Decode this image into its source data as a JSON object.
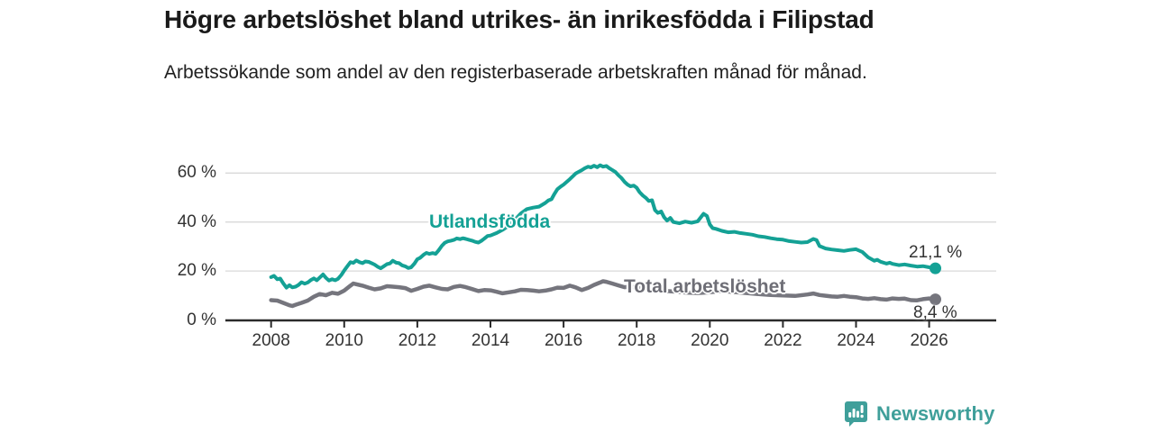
{
  "header": {
    "title": "Högre arbetslöshet bland utrikes- än inrikesfödda i Filipstad",
    "subtitle": "Arbetssökande som andel av den registerbaserade arbetskraften månad för månad."
  },
  "branding": {
    "logo_text": "Newsworthy",
    "logo_icon": "bar-chart-speech-bubble-icon",
    "brand_color": "#3f9f9a"
  },
  "colors": {
    "foreign_line": "#14a195",
    "total_line": "#75757d",
    "grid": "#d9d9d9",
    "axis": "#2b2b2b",
    "tick_text": "#333333"
  },
  "chart_data": {
    "type": "line",
    "title": "Högre arbetslöshet bland utrikes- än inrikesfödda i Filipstad",
    "subtitle": "Arbetssökande som andel av den registerbaserade arbetskraften månad för månad.",
    "xlabel": "",
    "ylabel": "",
    "ylim": [
      0,
      66
    ],
    "xlim": [
      2006.75,
      2027.8
    ],
    "grid": "horizontal",
    "legend_position": "inline-labels",
    "y_ticks": [
      0,
      20,
      40,
      60
    ],
    "y_tick_labels": [
      "0 %",
      "20 %",
      "40 %",
      "60 %"
    ],
    "x_ticks": [
      2008,
      2010,
      2012,
      2014,
      2016,
      2018,
      2020,
      2022,
      2024,
      2026
    ],
    "series": [
      {
        "name": "Utlandsfödda",
        "color": "#14a195",
        "end_value": 21.1,
        "end_label": "21,1 %",
        "points": [
          [
            2008.0,
            17.5
          ],
          [
            2008.08,
            18.0
          ],
          [
            2008.17,
            16.6
          ],
          [
            2008.25,
            16.9
          ],
          [
            2008.33,
            15.0
          ],
          [
            2008.42,
            13.2
          ],
          [
            2008.5,
            14.2
          ],
          [
            2008.58,
            13.3
          ],
          [
            2008.67,
            13.6
          ],
          [
            2008.75,
            14.3
          ],
          [
            2008.83,
            15.4
          ],
          [
            2008.92,
            14.8
          ],
          [
            2009.0,
            15.3
          ],
          [
            2009.08,
            16.2
          ],
          [
            2009.17,
            17.0
          ],
          [
            2009.25,
            16.2
          ],
          [
            2009.33,
            17.3
          ],
          [
            2009.42,
            18.6
          ],
          [
            2009.5,
            17.2
          ],
          [
            2009.58,
            16.1
          ],
          [
            2009.67,
            16.6
          ],
          [
            2009.75,
            16.2
          ],
          [
            2009.83,
            16.8
          ],
          [
            2009.92,
            18.4
          ],
          [
            2010.0,
            20.2
          ],
          [
            2010.08,
            21.8
          ],
          [
            2010.17,
            23.6
          ],
          [
            2010.25,
            23.3
          ],
          [
            2010.33,
            24.3
          ],
          [
            2010.42,
            23.6
          ],
          [
            2010.5,
            23.2
          ],
          [
            2010.58,
            23.9
          ],
          [
            2010.67,
            23.7
          ],
          [
            2010.75,
            23.2
          ],
          [
            2010.83,
            22.6
          ],
          [
            2010.92,
            21.7
          ],
          [
            2011.0,
            21.1
          ],
          [
            2011.08,
            21.9
          ],
          [
            2011.17,
            22.8
          ],
          [
            2011.25,
            23.1
          ],
          [
            2011.33,
            24.2
          ],
          [
            2011.42,
            23.4
          ],
          [
            2011.5,
            23.2
          ],
          [
            2011.58,
            22.3
          ],
          [
            2011.67,
            21.9
          ],
          [
            2011.75,
            21.2
          ],
          [
            2011.83,
            21.5
          ],
          [
            2011.92,
            23.0
          ],
          [
            2012.0,
            24.8
          ],
          [
            2012.08,
            25.4
          ],
          [
            2012.17,
            26.6
          ],
          [
            2012.25,
            27.4
          ],
          [
            2012.33,
            27.0
          ],
          [
            2012.42,
            27.3
          ],
          [
            2012.5,
            27.0
          ],
          [
            2012.58,
            28.4
          ],
          [
            2012.67,
            30.3
          ],
          [
            2012.75,
            31.5
          ],
          [
            2012.83,
            32.1
          ],
          [
            2012.92,
            32.4
          ],
          [
            2013.0,
            32.7
          ],
          [
            2013.08,
            33.3
          ],
          [
            2013.17,
            33.0
          ],
          [
            2013.25,
            33.4
          ],
          [
            2013.33,
            33.1
          ],
          [
            2013.42,
            32.7
          ],
          [
            2013.5,
            32.4
          ],
          [
            2013.58,
            31.9
          ],
          [
            2013.67,
            31.6
          ],
          [
            2013.75,
            32.3
          ],
          [
            2013.83,
            33.2
          ],
          [
            2013.92,
            34.3
          ],
          [
            2014.0,
            34.5
          ],
          [
            2014.17,
            35.5
          ],
          [
            2014.33,
            36.8
          ],
          [
            2014.5,
            38.5
          ],
          [
            2014.67,
            41.0
          ],
          [
            2014.83,
            43.5
          ],
          [
            2015.0,
            45.3
          ],
          [
            2015.17,
            45.9
          ],
          [
            2015.33,
            46.3
          ],
          [
            2015.5,
            47.8
          ],
          [
            2015.58,
            48.8
          ],
          [
            2015.67,
            49.3
          ],
          [
            2015.75,
            51.5
          ],
          [
            2015.83,
            53.4
          ],
          [
            2015.92,
            54.5
          ],
          [
            2016.0,
            55.3
          ],
          [
            2016.17,
            57.5
          ],
          [
            2016.33,
            59.8
          ],
          [
            2016.5,
            61.2
          ],
          [
            2016.58,
            62.0
          ],
          [
            2016.67,
            62.6
          ],
          [
            2016.75,
            62.3
          ],
          [
            2016.83,
            63.0
          ],
          [
            2016.92,
            62.4
          ],
          [
            2017.0,
            63.2
          ],
          [
            2017.08,
            62.6
          ],
          [
            2017.17,
            62.9
          ],
          [
            2017.25,
            62.0
          ],
          [
            2017.33,
            61.3
          ],
          [
            2017.42,
            60.4
          ],
          [
            2017.5,
            59.1
          ],
          [
            2017.58,
            58.0
          ],
          [
            2017.67,
            56.4
          ],
          [
            2017.75,
            55.3
          ],
          [
            2017.83,
            54.6
          ],
          [
            2017.92,
            54.9
          ],
          [
            2018.0,
            54.0
          ],
          [
            2018.08,
            52.2
          ],
          [
            2018.17,
            50.8
          ],
          [
            2018.25,
            49.9
          ],
          [
            2018.33,
            48.6
          ],
          [
            2018.42,
            48.9
          ],
          [
            2018.5,
            44.9
          ],
          [
            2018.58,
            43.7
          ],
          [
            2018.67,
            44.3
          ],
          [
            2018.75,
            42.0
          ],
          [
            2018.83,
            40.6
          ],
          [
            2018.92,
            41.7
          ],
          [
            2019.0,
            40.0
          ],
          [
            2019.17,
            39.5
          ],
          [
            2019.33,
            40.2
          ],
          [
            2019.5,
            39.7
          ],
          [
            2019.67,
            40.3
          ],
          [
            2019.83,
            43.4
          ],
          [
            2019.92,
            42.5
          ],
          [
            2020.0,
            39.0
          ],
          [
            2020.08,
            37.5
          ],
          [
            2020.17,
            37.2
          ],
          [
            2020.33,
            36.4
          ],
          [
            2020.5,
            35.8
          ],
          [
            2020.67,
            36.0
          ],
          [
            2020.83,
            35.5
          ],
          [
            2021.0,
            35.2
          ],
          [
            2021.17,
            34.8
          ],
          [
            2021.33,
            34.2
          ],
          [
            2021.5,
            33.9
          ],
          [
            2021.67,
            33.4
          ],
          [
            2021.83,
            33.0
          ],
          [
            2022.0,
            32.8
          ],
          [
            2022.17,
            32.2
          ],
          [
            2022.33,
            31.9
          ],
          [
            2022.5,
            31.6
          ],
          [
            2022.67,
            31.8
          ],
          [
            2022.83,
            33.1
          ],
          [
            2022.92,
            32.6
          ],
          [
            2023.0,
            30.2
          ],
          [
            2023.17,
            29.2
          ],
          [
            2023.33,
            28.8
          ],
          [
            2023.5,
            28.5
          ],
          [
            2023.67,
            28.2
          ],
          [
            2023.83,
            28.6
          ],
          [
            2024.0,
            28.9
          ],
          [
            2024.17,
            27.8
          ],
          [
            2024.33,
            25.6
          ],
          [
            2024.5,
            24.2
          ],
          [
            2024.58,
            24.6
          ],
          [
            2024.67,
            23.8
          ],
          [
            2024.83,
            23.0
          ],
          [
            2024.92,
            23.4
          ],
          [
            2025.0,
            22.9
          ],
          [
            2025.17,
            22.4
          ],
          [
            2025.33,
            22.7
          ],
          [
            2025.5,
            22.2
          ],
          [
            2025.67,
            21.8
          ],
          [
            2025.83,
            22.0
          ],
          [
            2026.0,
            21.5
          ],
          [
            2026.17,
            21.1
          ]
        ]
      },
      {
        "name": "Total arbetslöshet",
        "color": "#75757d",
        "end_value": 8.4,
        "end_label": "8,4 %",
        "points": [
          [
            2008.0,
            8.1
          ],
          [
            2008.17,
            7.9
          ],
          [
            2008.33,
            7.0
          ],
          [
            2008.5,
            6.0
          ],
          [
            2008.58,
            5.7
          ],
          [
            2008.67,
            6.2
          ],
          [
            2008.83,
            7.0
          ],
          [
            2009.0,
            7.9
          ],
          [
            2009.17,
            9.5
          ],
          [
            2009.33,
            10.6
          ],
          [
            2009.5,
            10.1
          ],
          [
            2009.67,
            11.1
          ],
          [
            2009.83,
            10.7
          ],
          [
            2010.0,
            12.0
          ],
          [
            2010.17,
            14.0
          ],
          [
            2010.25,
            14.9
          ],
          [
            2010.33,
            14.6
          ],
          [
            2010.5,
            14.0
          ],
          [
            2010.67,
            13.2
          ],
          [
            2010.83,
            12.5
          ],
          [
            2011.0,
            12.9
          ],
          [
            2011.17,
            13.8
          ],
          [
            2011.33,
            13.6
          ],
          [
            2011.5,
            13.4
          ],
          [
            2011.67,
            13.0
          ],
          [
            2011.83,
            11.9
          ],
          [
            2012.0,
            12.7
          ],
          [
            2012.17,
            13.6
          ],
          [
            2012.33,
            14.0
          ],
          [
            2012.5,
            13.3
          ],
          [
            2012.67,
            12.7
          ],
          [
            2012.83,
            12.5
          ],
          [
            2013.0,
            13.5
          ],
          [
            2013.17,
            13.9
          ],
          [
            2013.33,
            13.4
          ],
          [
            2013.5,
            12.6
          ],
          [
            2013.67,
            11.8
          ],
          [
            2013.83,
            12.2
          ],
          [
            2014.0,
            12.1
          ],
          [
            2014.17,
            11.5
          ],
          [
            2014.33,
            10.9
          ],
          [
            2014.5,
            11.3
          ],
          [
            2014.67,
            11.7
          ],
          [
            2014.83,
            12.3
          ],
          [
            2015.0,
            12.2
          ],
          [
            2015.17,
            12.0
          ],
          [
            2015.33,
            11.7
          ],
          [
            2015.5,
            12.0
          ],
          [
            2015.67,
            12.5
          ],
          [
            2015.83,
            13.2
          ],
          [
            2016.0,
            13.1
          ],
          [
            2016.17,
            14.0
          ],
          [
            2016.33,
            13.3
          ],
          [
            2016.5,
            12.2
          ],
          [
            2016.67,
            13.1
          ],
          [
            2016.83,
            14.3
          ],
          [
            2017.0,
            15.3
          ],
          [
            2017.08,
            15.8
          ],
          [
            2017.17,
            15.6
          ],
          [
            2017.33,
            14.9
          ],
          [
            2017.5,
            14.1
          ],
          [
            2017.67,
            13.4
          ],
          [
            2017.83,
            13.6
          ],
          [
            2018.0,
            13.2
          ],
          [
            2018.33,
            12.6
          ],
          [
            2018.67,
            12.0
          ],
          [
            2019.0,
            11.6
          ],
          [
            2019.33,
            11.2
          ],
          [
            2019.67,
            11.0
          ],
          [
            2020.0,
            11.3
          ],
          [
            2020.33,
            11.8
          ],
          [
            2020.67,
            11.4
          ],
          [
            2021.0,
            11.0
          ],
          [
            2021.33,
            10.6
          ],
          [
            2021.67,
            10.2
          ],
          [
            2022.0,
            10.0
          ],
          [
            2022.33,
            9.8
          ],
          [
            2022.67,
            10.4
          ],
          [
            2022.83,
            10.8
          ],
          [
            2023.0,
            10.2
          ],
          [
            2023.17,
            9.9
          ],
          [
            2023.33,
            9.6
          ],
          [
            2023.5,
            9.5
          ],
          [
            2023.67,
            9.8
          ],
          [
            2023.83,
            9.5
          ],
          [
            2024.0,
            9.3
          ],
          [
            2024.17,
            8.8
          ],
          [
            2024.33,
            8.6
          ],
          [
            2024.5,
            8.9
          ],
          [
            2024.67,
            8.5
          ],
          [
            2024.83,
            8.3
          ],
          [
            2025.0,
            8.8
          ],
          [
            2025.17,
            8.6
          ],
          [
            2025.33,
            8.7
          ],
          [
            2025.5,
            8.1
          ],
          [
            2025.67,
            8.0
          ],
          [
            2025.83,
            8.5
          ],
          [
            2026.0,
            8.8
          ],
          [
            2026.17,
            8.4
          ]
        ]
      }
    ]
  }
}
